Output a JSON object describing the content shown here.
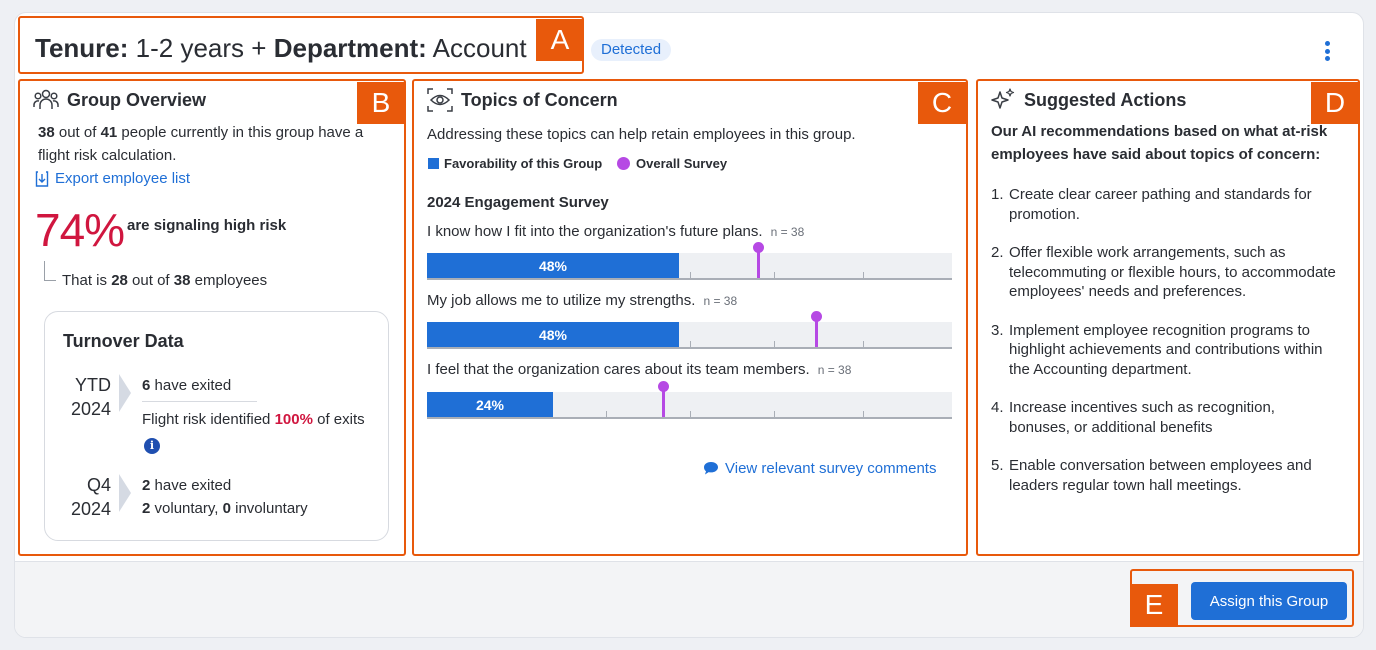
{
  "header": {
    "tenure_key": "Tenure:",
    "tenure_value": "1-2 years",
    "plus": "+",
    "dept_key": "Department:",
    "dept_value": "Account",
    "badge": "Detected"
  },
  "annotation_labels": {
    "a": "A",
    "b": "B",
    "c": "C",
    "d": "D",
    "e": "E"
  },
  "group_overview": {
    "title": "Group Overview",
    "count": "38",
    "text_out_of": "out of",
    "total": "41",
    "text_rest": "people currently in this group have a flight risk calculation.",
    "export_link": "Export employee list",
    "percent": "74%",
    "percent_label": "are signaling high risk",
    "that_is": "That is",
    "at_risk": "28",
    "out_of": "out of",
    "of_total": "38",
    "employees": "employees",
    "turnover": {
      "title": "Turnover Data",
      "periods": [
        {
          "label_line1": "YTD",
          "label_line2": "2024",
          "exited_count": "6",
          "exited_text": "have exited",
          "flight_prefix": "Flight risk identified",
          "flight_pct": "100%",
          "flight_suffix": "of exits"
        },
        {
          "label_line1": "Q4",
          "label_line2": "2024",
          "exited_count": "2",
          "exited_text": "have exited",
          "voluntary_count": "2",
          "voluntary_text": "voluntary,",
          "involuntary_count": "0",
          "involuntary_text": "involuntary"
        }
      ]
    }
  },
  "topics": {
    "title": "Topics of Concern",
    "description": "Addressing these topics can help retain employees in this group.",
    "legend_group": "Favorability of this Group",
    "legend_overall": "Overall Survey",
    "survey_title": "2024 Engagement Survey",
    "view_comments": "View relevant survey comments",
    "colors": {
      "group": "#1f6fd6",
      "overall": "#b649e4"
    },
    "questions": [
      {
        "text": "I know how I fit into the organization's future plans.",
        "n": "n = 38",
        "value": 48,
        "value_label": "48%",
        "overall": 63
      },
      {
        "text": "My job allows me to utilize my strengths.",
        "n": "n = 38",
        "value": 48,
        "value_label": "48%",
        "overall": 74
      },
      {
        "text": "I feel that the organization cares about its team members.",
        "n": "n = 38",
        "value": 24,
        "value_label": "24%",
        "overall": 45
      }
    ]
  },
  "suggested": {
    "title": "Suggested Actions",
    "intro": "Our AI recommendations based on what at-risk employees have said about topics of concern:",
    "items": [
      {
        "num": "1.",
        "text": "Create clear career pathing and standards for promotion."
      },
      {
        "num": "2.",
        "text": "Offer flexible work arrangements, such as telecommuting or flexible hours, to accommodate employees' needs and preferences."
      },
      {
        "num": "3.",
        "text": "Implement employee recognition programs to highlight achievements and contributions within the Accounting department."
      },
      {
        "num": "4.",
        "text": "Increase incentives such as recognition, bonuses, or additional benefits"
      },
      {
        "num": "5.",
        "text": "Enable conversation between employees and leaders regular town hall meetings."
      }
    ]
  },
  "footer": {
    "assign_button": "Assign this Group"
  },
  "icons": {
    "group": "people-group-icon",
    "topics": "eye-scan-icon",
    "suggested": "sparkles-icon",
    "export": "download-icon",
    "comments": "speech-bubble-icon",
    "info": "info-icon",
    "more": "kebab-menu-icon"
  }
}
